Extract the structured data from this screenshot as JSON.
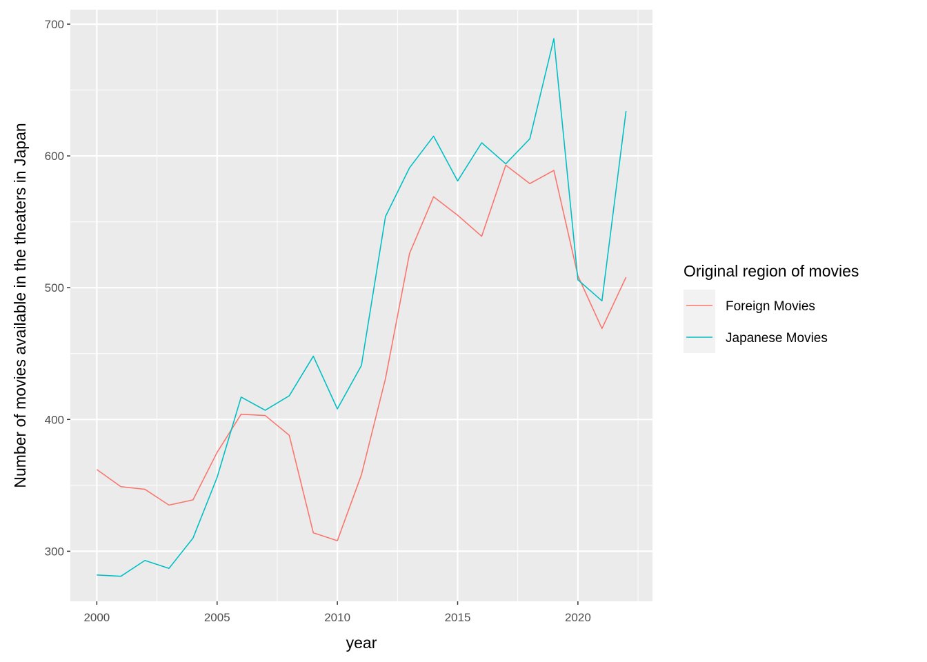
{
  "chart_data": {
    "type": "line",
    "xlabel": "year",
    "ylabel": "Number of movies available in the theaters in Japan",
    "x": [
      2000,
      2001,
      2002,
      2003,
      2004,
      2005,
      2006,
      2007,
      2008,
      2009,
      2010,
      2011,
      2012,
      2013,
      2014,
      2015,
      2016,
      2017,
      2018,
      2019,
      2020,
      2021,
      2022
    ],
    "xlim": [
      1998.9,
      2023.1
    ],
    "ylim": [
      262,
      711
    ],
    "x_ticks": [
      2000,
      2005,
      2010,
      2015,
      2020
    ],
    "x_tick_labels": [
      "2000",
      "2005",
      "2010",
      "2015",
      "2020"
    ],
    "y_ticks": [
      300,
      400,
      500,
      600,
      700
    ],
    "y_tick_labels": [
      "300",
      "400",
      "500",
      "600",
      "700"
    ],
    "grid": true,
    "legend": {
      "title": "Original region of movies",
      "position": "right"
    },
    "series": [
      {
        "name": "Foreign Movies",
        "color": "#F8766D",
        "values": [
          362,
          349,
          347,
          335,
          339,
          375,
          404,
          403,
          388,
          314,
          308,
          358,
          431,
          526,
          569,
          555,
          539,
          593,
          579,
          589,
          509,
          469,
          508
        ]
      },
      {
        "name": "Japanese Movies",
        "color": "#00BFC4",
        "values": [
          282,
          281,
          293,
          287,
          310,
          356,
          417,
          407,
          418,
          448,
          408,
          441,
          554,
          591,
          615,
          581,
          610,
          594,
          613,
          689,
          506,
          490,
          634
        ]
      }
    ]
  }
}
